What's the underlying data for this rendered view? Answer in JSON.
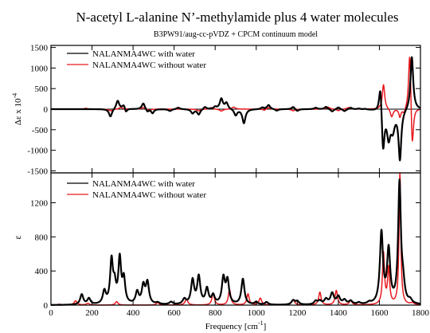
{
  "figure": {
    "title": "N-acetyl L-alanine N’-methylamide plus 4 water molecules",
    "subtitle": "B3PW91/aug-cc-pVDZ + CPCM continuum model",
    "xlabel_main": "Frequency [cm",
    "xlabel_sup": "-1",
    "xlabel_end": "]"
  },
  "chart_data": [
    {
      "type": "line",
      "panel": "top",
      "ylabel_main": "Δε  x 10",
      "ylabel_sup": "-4",
      "xlim": [
        0,
        1800
      ],
      "ylim": [
        -1550,
        1550
      ],
      "xticks": [
        "0",
        "200",
        "400",
        "600",
        "800",
        "1000",
        "1200",
        "1400",
        "1600",
        "1800"
      ],
      "yticks": [
        -1500,
        -1000,
        -500,
        0,
        500,
        1000,
        1500
      ],
      "legend": "top-left",
      "baseline_shown": true,
      "series": [
        {
          "name": "NALANMA4WC with water",
          "color": "#000000",
          "linewidth": 2.2,
          "peaks": [
            [
              290,
              -190,
              9
            ],
            [
              325,
              210,
              9
            ],
            [
              355,
              110,
              9
            ],
            [
              365,
              -110,
              7
            ],
            [
              450,
              150,
              9
            ],
            [
              470,
              -70,
              8
            ],
            [
              495,
              -100,
              8
            ],
            [
              580,
              -45,
              10
            ],
            [
              620,
              40,
              10
            ],
            [
              690,
              -100,
              9
            ],
            [
              720,
              -130,
              9
            ],
            [
              750,
              60,
              9
            ],
            [
              800,
              50,
              9
            ],
            [
              830,
              250,
              9
            ],
            [
              855,
              150,
              9
            ],
            [
              900,
              -150,
              9
            ],
            [
              940,
              -340,
              9
            ],
            [
              1030,
              40,
              9
            ],
            [
              1060,
              100,
              9
            ],
            [
              1100,
              -40,
              9
            ],
            [
              1180,
              60,
              9
            ],
            [
              1200,
              -50,
              9
            ],
            [
              1290,
              35,
              9
            ],
            [
              1340,
              60,
              9
            ],
            [
              1370,
              -60,
              9
            ],
            [
              1400,
              50,
              9
            ],
            [
              1430,
              -50,
              9
            ],
            [
              1460,
              40,
              9
            ],
            [
              1500,
              20,
              9
            ],
            [
              1530,
              15,
              9
            ],
            [
              1605,
              760,
              8
            ],
            [
              1618,
              -1050,
              8
            ],
            [
              1645,
              -620,
              10
            ],
            [
              1665,
              -450,
              12
            ],
            [
              1700,
              -1200,
              8
            ],
            [
              1758,
              1300,
              8
            ]
          ]
        },
        {
          "name": "NALANMA4WC without water",
          "color": "#e8191e",
          "linewidth": 1.5,
          "peaks": [
            [
              170,
              20,
              10
            ],
            [
              290,
              -40,
              10
            ],
            [
              340,
              40,
              10
            ],
            [
              450,
              40,
              10
            ],
            [
              480,
              -30,
              10
            ],
            [
              720,
              -40,
              10
            ],
            [
              780,
              40,
              10
            ],
            [
              830,
              -50,
              10
            ],
            [
              890,
              50,
              10
            ],
            [
              1040,
              -30,
              10
            ],
            [
              1060,
              40,
              10
            ],
            [
              1180,
              -40,
              10
            ],
            [
              1350,
              50,
              10
            ],
            [
              1400,
              -40,
              10
            ],
            [
              1450,
              40,
              10
            ],
            [
              1620,
              600,
              7
            ],
            [
              1660,
              -200,
              8
            ],
            [
              1700,
              -200,
              6
            ],
            [
              1720,
              -120,
              8
            ],
            [
              1748,
              1560,
              7
            ],
            [
              1760,
              -1140,
              7
            ]
          ]
        }
      ]
    },
    {
      "type": "line",
      "panel": "bottom",
      "ylabel": "ε",
      "xlim": [
        0,
        1800
      ],
      "ylim": [
        0,
        1550
      ],
      "xticks": [
        "0",
        "200",
        "400",
        "600",
        "800",
        "1000",
        "1200",
        "1400",
        "1600",
        "1800"
      ],
      "yticks": [
        0,
        400,
        800,
        1200
      ],
      "legend": "top-left",
      "series": [
        {
          "name": "NALANMA4WC with water",
          "color": "#000000",
          "linewidth": 2.2,
          "peaks": [
            [
              150,
              120,
              9
            ],
            [
              185,
              70,
              9
            ],
            [
              260,
              150,
              9
            ],
            [
              295,
              500,
              8
            ],
            [
              310,
              200,
              8
            ],
            [
              335,
              520,
              8
            ],
            [
              355,
              280,
              8
            ],
            [
              420,
              140,
              9
            ],
            [
              450,
              210,
              9
            ],
            [
              470,
              250,
              9
            ],
            [
              520,
              20,
              10
            ],
            [
              585,
              30,
              10
            ],
            [
              650,
              60,
              10
            ],
            [
              690,
              280,
              9
            ],
            [
              720,
              320,
              9
            ],
            [
              760,
              180,
              9
            ],
            [
              790,
              100,
              9
            ],
            [
              840,
              300,
              9
            ],
            [
              860,
              270,
              9
            ],
            [
              935,
              300,
              9
            ],
            [
              1000,
              30,
              10
            ],
            [
              1050,
              30,
              10
            ],
            [
              1180,
              50,
              10
            ],
            [
              1200,
              40,
              10
            ],
            [
              1290,
              40,
              10
            ],
            [
              1310,
              40,
              10
            ],
            [
              1340,
              60,
              10
            ],
            [
              1370,
              130,
              10
            ],
            [
              1400,
              90,
              10
            ],
            [
              1430,
              50,
              10
            ],
            [
              1460,
              40,
              10
            ],
            [
              1500,
              20,
              10
            ],
            [
              1550,
              20,
              10
            ],
            [
              1610,
              830,
              9
            ],
            [
              1645,
              620,
              9
            ],
            [
              1698,
              1400,
              8
            ],
            [
              1715,
              200,
              9
            ],
            [
              1750,
              40,
              10
            ]
          ]
        },
        {
          "name": "NALANMA4WC without water",
          "color": "#e8191e",
          "linewidth": 1.5,
          "peaks": [
            [
              40,
              10,
              9
            ],
            [
              120,
              50,
              9
            ],
            [
              180,
              20,
              9
            ],
            [
              320,
              40,
              8
            ],
            [
              520,
              30,
              8
            ],
            [
              660,
              70,
              8
            ],
            [
              790,
              140,
              7
            ],
            [
              870,
              180,
              7
            ],
            [
              960,
              130,
              7
            ],
            [
              1020,
              80,
              8
            ],
            [
              1180,
              60,
              9
            ],
            [
              1310,
              150,
              7
            ],
            [
              1390,
              170,
              7
            ],
            [
              1460,
              50,
              8
            ],
            [
              1620,
              600,
              6
            ],
            [
              1645,
              420,
              6
            ],
            [
              1700,
              1550,
              5
            ],
            [
              1760,
              20,
              10
            ]
          ]
        }
      ]
    }
  ]
}
